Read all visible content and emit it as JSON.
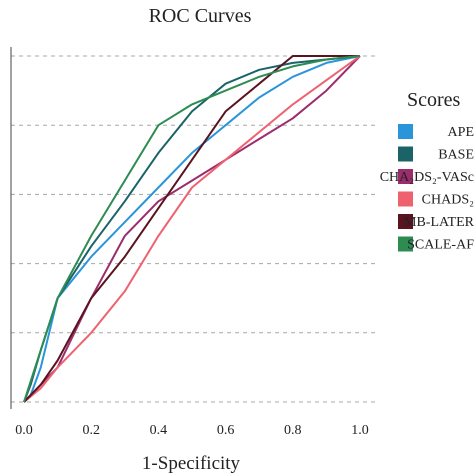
{
  "chart_data": {
    "type": "line",
    "title": "ROC Curves",
    "xlabel": "1-Specificity",
    "ylabel": "",
    "xlim": [
      0,
      1
    ],
    "ylim": [
      0,
      1
    ],
    "x_ticks": [
      "0.0",
      "0.2",
      "0.4",
      "0.6",
      "0.8",
      "1.0"
    ],
    "grid": "horizontal-dashed",
    "legend": {
      "title": "Scores",
      "placement": "right"
    },
    "series": [
      {
        "name": "APE",
        "color": "#2b95db",
        "points": [
          [
            0,
            0
          ],
          [
            0.02,
            0.02
          ],
          [
            0.05,
            0.1
          ],
          [
            0.1,
            0.3
          ],
          [
            0.2,
            0.42
          ],
          [
            0.3,
            0.52
          ],
          [
            0.4,
            0.62
          ],
          [
            0.5,
            0.72
          ],
          [
            0.6,
            0.8
          ],
          [
            0.7,
            0.88
          ],
          [
            0.8,
            0.94
          ],
          [
            0.9,
            0.98
          ],
          [
            1,
            1
          ]
        ]
      },
      {
        "name": "BASE",
        "color": "#1a6468",
        "points": [
          [
            0,
            0
          ],
          [
            0.02,
            0.05
          ],
          [
            0.05,
            0.15
          ],
          [
            0.1,
            0.3
          ],
          [
            0.2,
            0.45
          ],
          [
            0.3,
            0.58
          ],
          [
            0.4,
            0.72
          ],
          [
            0.5,
            0.84
          ],
          [
            0.6,
            0.92
          ],
          [
            0.7,
            0.96
          ],
          [
            0.8,
            0.98
          ],
          [
            0.9,
            0.99
          ],
          [
            1,
            1
          ]
        ]
      },
      {
        "name": "CHA₂DS₂-VASc",
        "color": "#9c2d6c",
        "points": [
          [
            0,
            0
          ],
          [
            0.05,
            0.05
          ],
          [
            0.1,
            0.1
          ],
          [
            0.2,
            0.3
          ],
          [
            0.3,
            0.48
          ],
          [
            0.4,
            0.58
          ],
          [
            0.5,
            0.64
          ],
          [
            0.6,
            0.7
          ],
          [
            0.7,
            0.76
          ],
          [
            0.8,
            0.82
          ],
          [
            0.9,
            0.9
          ],
          [
            1,
            1
          ]
        ]
      },
      {
        "name": "CHADS₂",
        "color": "#ee6270",
        "points": [
          [
            0,
            0
          ],
          [
            0.05,
            0.04
          ],
          [
            0.1,
            0.1
          ],
          [
            0.2,
            0.2
          ],
          [
            0.3,
            0.32
          ],
          [
            0.4,
            0.48
          ],
          [
            0.5,
            0.62
          ],
          [
            0.6,
            0.7
          ],
          [
            0.7,
            0.78
          ],
          [
            0.8,
            0.86
          ],
          [
            0.9,
            0.93
          ],
          [
            1,
            1
          ]
        ]
      },
      {
        "name": "MB-LATER",
        "color": "#5a1420",
        "points": [
          [
            0,
            0
          ],
          [
            0.05,
            0.05
          ],
          [
            0.1,
            0.12
          ],
          [
            0.2,
            0.3
          ],
          [
            0.3,
            0.42
          ],
          [
            0.4,
            0.56
          ],
          [
            0.5,
            0.7
          ],
          [
            0.6,
            0.84
          ],
          [
            0.7,
            0.92
          ],
          [
            0.8,
            1
          ],
          [
            1,
            1
          ]
        ]
      },
      {
        "name": "SCALE-AF",
        "color": "#2d8c52",
        "points": [
          [
            0,
            0
          ],
          [
            0.02,
            0.06
          ],
          [
            0.05,
            0.15
          ],
          [
            0.1,
            0.3
          ],
          [
            0.2,
            0.48
          ],
          [
            0.3,
            0.64
          ],
          [
            0.4,
            0.8
          ],
          [
            0.5,
            0.86
          ],
          [
            0.6,
            0.9
          ],
          [
            0.7,
            0.94
          ],
          [
            0.8,
            0.97
          ],
          [
            0.9,
            0.99
          ],
          [
            1,
            1
          ]
        ]
      }
    ]
  }
}
